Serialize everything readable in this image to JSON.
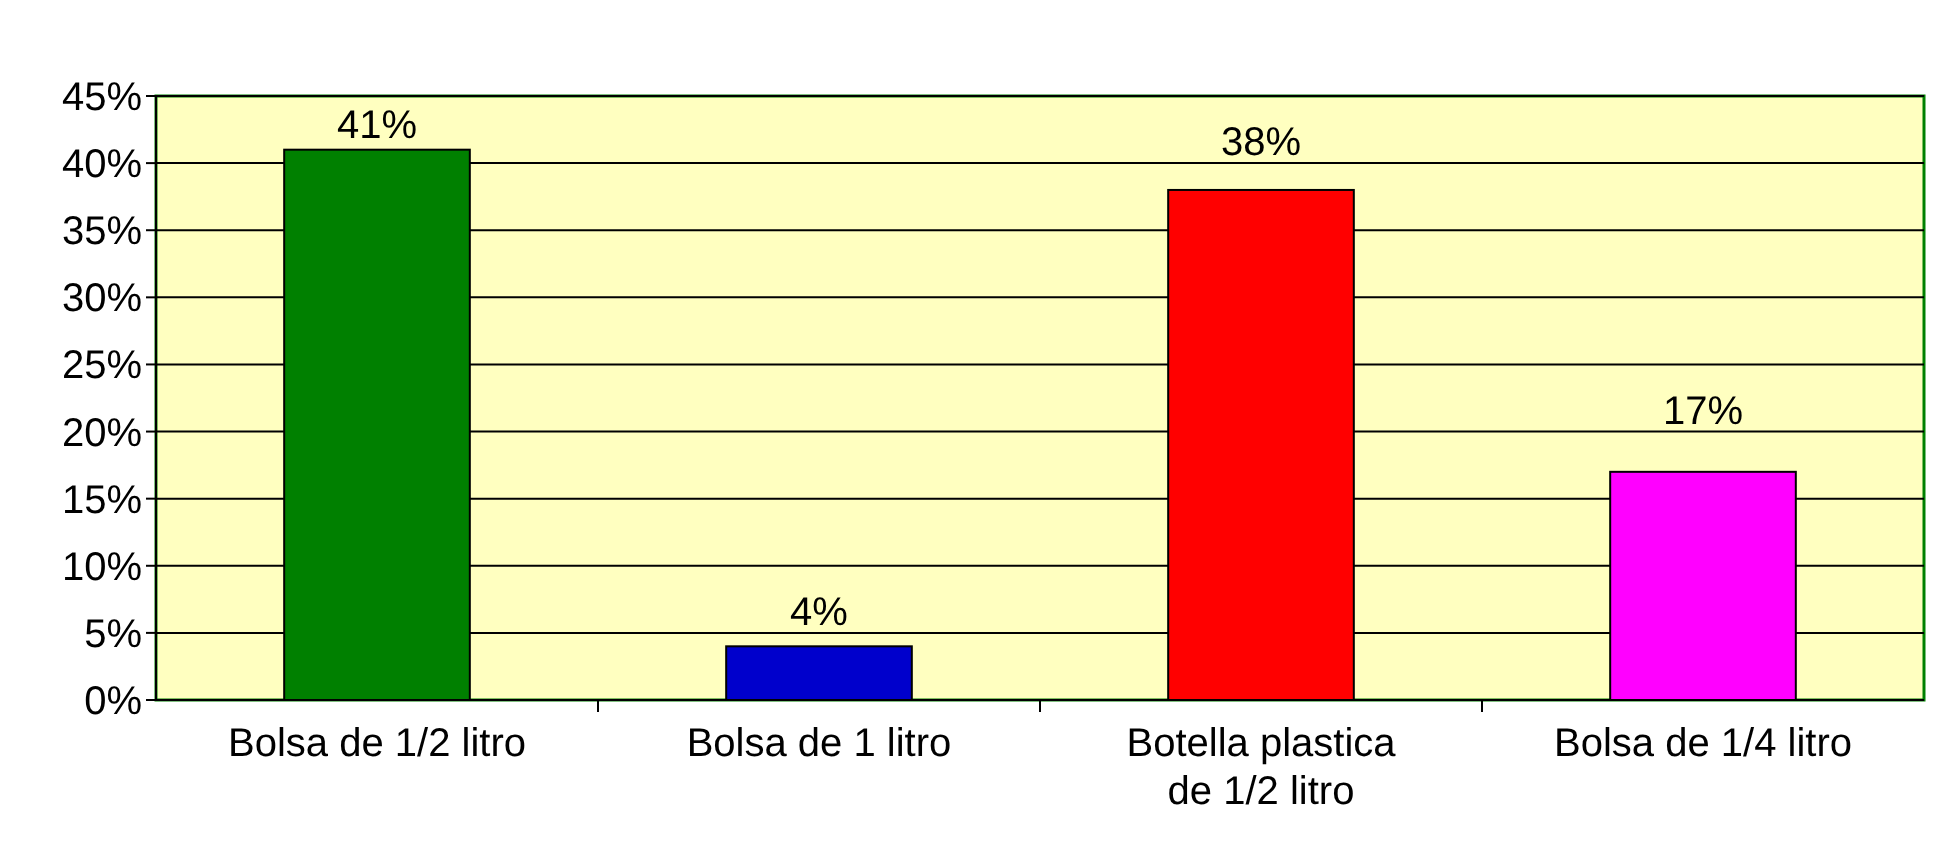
{
  "chart_data": {
    "type": "bar",
    "categories": [
      "Bolsa de 1/2 litro",
      "Bolsa de 1 litro",
      "Botella plastica de 1/2 litro",
      "Bolsa de 1/4 litro"
    ],
    "values": [
      41,
      4,
      38,
      17
    ],
    "colors": [
      "#008000",
      "#0000cc",
      "#ff0000",
      "#ff00ff"
    ],
    "value_labels": [
      "41%",
      "4%",
      "38%",
      "17%"
    ],
    "ylim": [
      0,
      45
    ],
    "yticks": [
      {
        "value": 0,
        "label": "0%"
      },
      {
        "value": 5,
        "label": "5%"
      },
      {
        "value": 10,
        "label": "10%"
      },
      {
        "value": 15,
        "label": "15%"
      },
      {
        "value": 20,
        "label": "20%"
      },
      {
        "value": 25,
        "label": "25%"
      },
      {
        "value": 30,
        "label": "30%"
      },
      {
        "value": 35,
        "label": "35%"
      },
      {
        "value": 40,
        "label": "40%"
      },
      {
        "value": 45,
        "label": "45%"
      }
    ],
    "grid": "y"
  }
}
